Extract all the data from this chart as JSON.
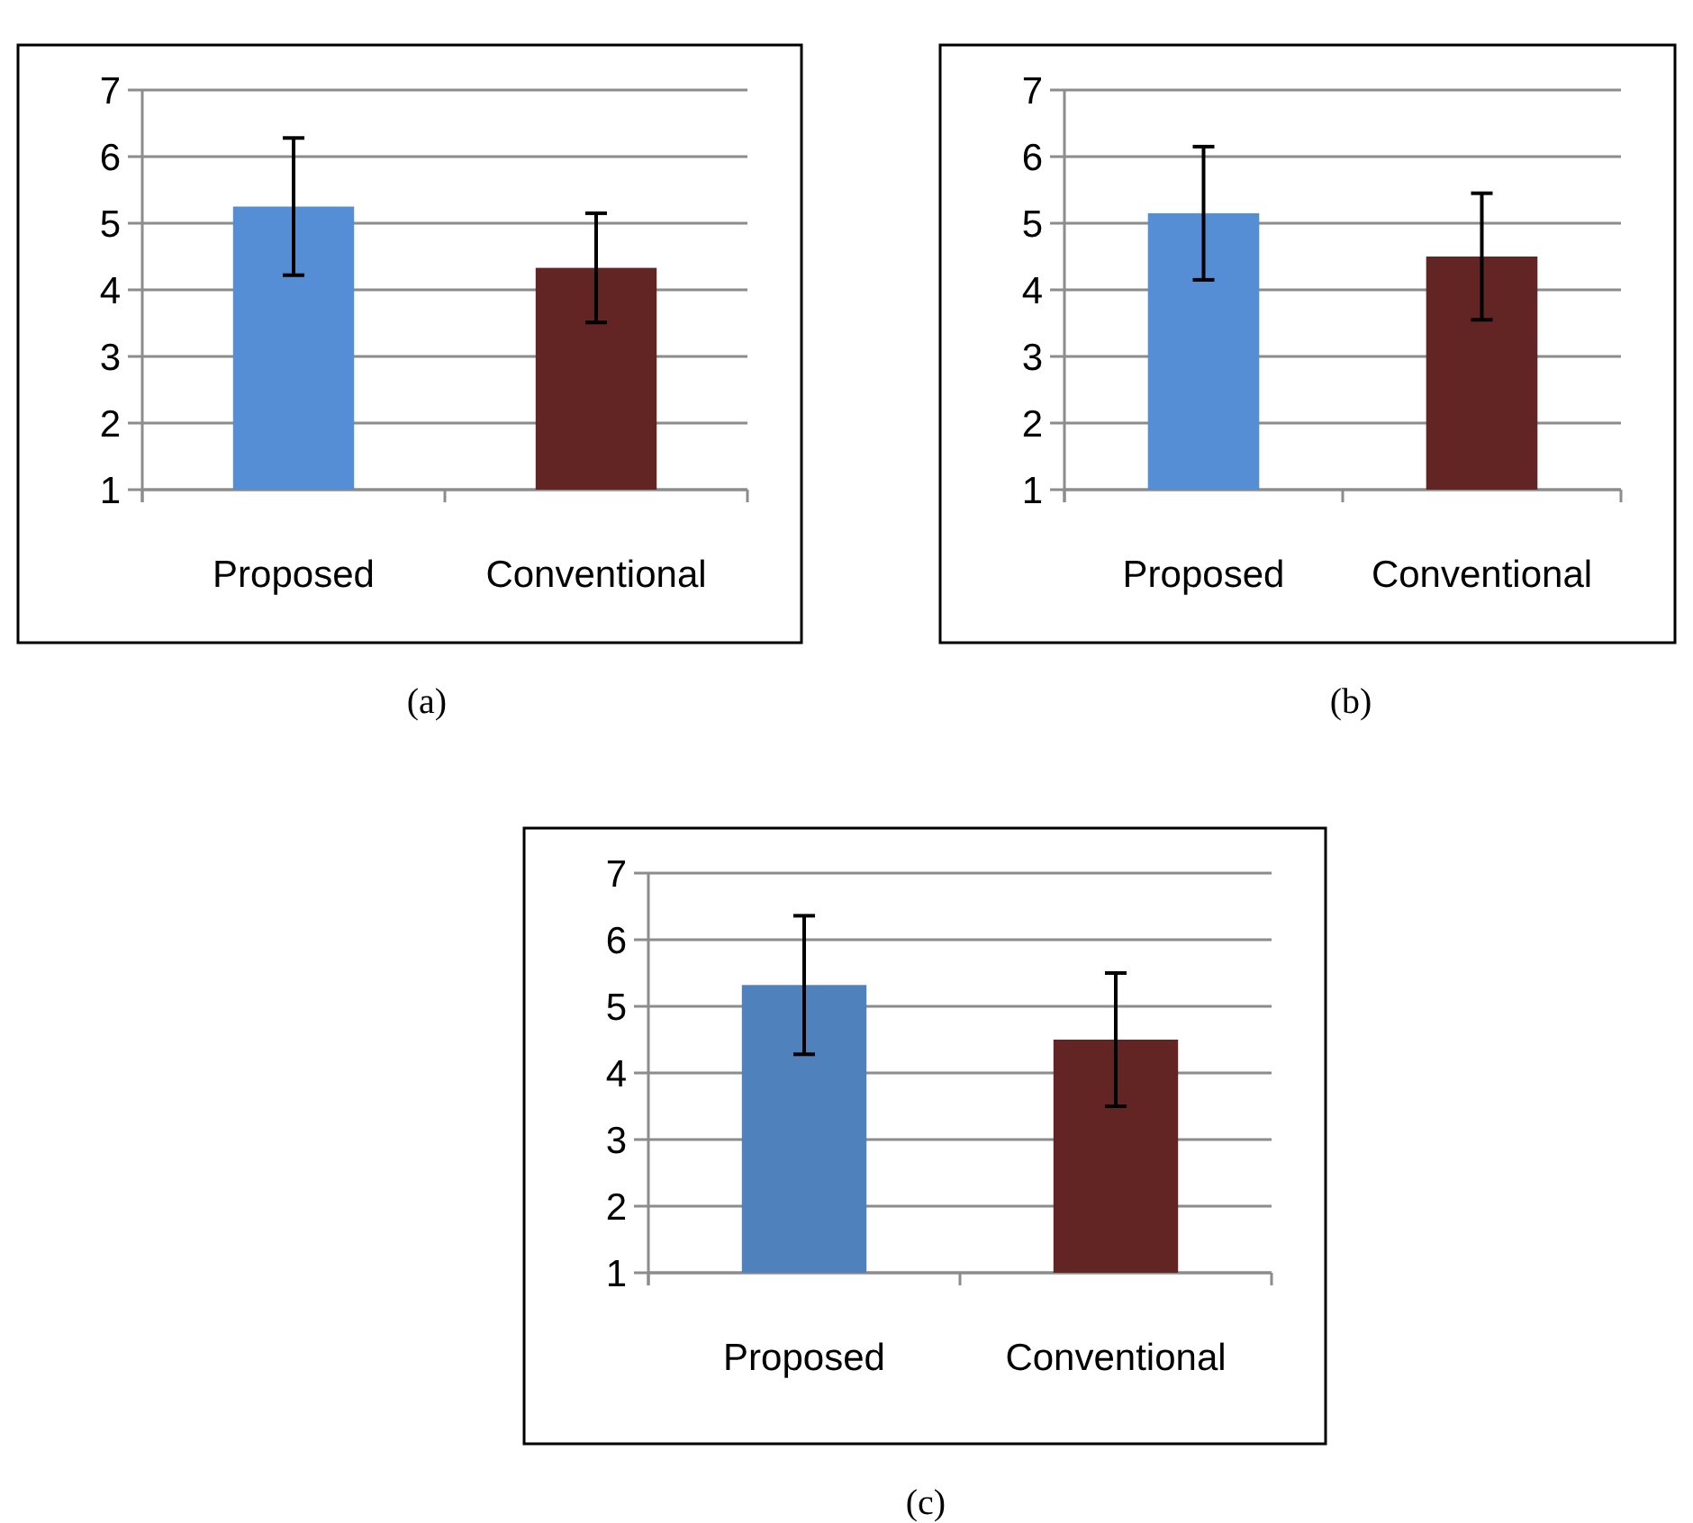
{
  "chart_data": [
    {
      "type": "bar",
      "title": "(a)",
      "categories": [
        "Proposed",
        "Conventional"
      ],
      "values": [
        5.25,
        4.33
      ],
      "colors": [
        "#558ed5",
        "#632523"
      ],
      "errors": [
        1.03,
        0.82
      ],
      "ylim": [
        1,
        7
      ],
      "yticks": [
        1,
        2,
        3,
        4,
        5,
        6,
        7
      ],
      "grid": "y"
    },
    {
      "type": "bar",
      "title": "(b)",
      "categories": [
        "Proposed",
        "Conventional"
      ],
      "values": [
        5.15,
        4.5
      ],
      "colors": [
        "#558ed5",
        "#632523"
      ],
      "errors": [
        1.0,
        0.95
      ],
      "ylim": [
        1,
        7
      ],
      "yticks": [
        1,
        2,
        3,
        4,
        5,
        6,
        7
      ],
      "grid": "y"
    },
    {
      "type": "bar",
      "title": "(c)",
      "categories": [
        "Proposed",
        "Conventional"
      ],
      "values": [
        5.32,
        4.5
      ],
      "colors": [
        "#4f81bd",
        "#632523"
      ],
      "errors": [
        1.04,
        1.0
      ],
      "ylim": [
        1,
        7
      ],
      "yticks": [
        1,
        2,
        3,
        4,
        5,
        6,
        7
      ],
      "grid": "y"
    }
  ]
}
